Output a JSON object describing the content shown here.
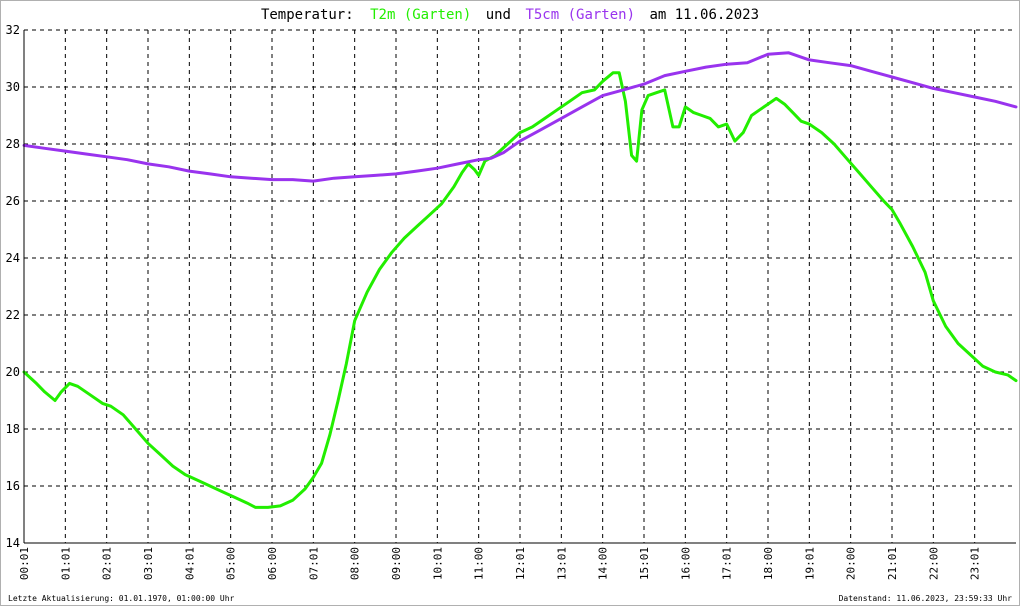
{
  "title": {
    "prefix": "Temperatur:",
    "series1_label": "T2m (Garten)",
    "connector": "und",
    "series2_label": "T5cm (Garten)",
    "suffix": "am 11.06.2023"
  },
  "footer": {
    "left": "Letzte Aktualisierung: 01.01.1970, 01:00:00 Uhr",
    "right": "Datenstand: 11.06.2023, 23:59:33 Uhr"
  },
  "colors": {
    "t2m": "#22ee00",
    "t5cm": "#9933ee",
    "grid": "#000000",
    "axis": "#000000"
  },
  "chart_data": {
    "type": "line",
    "title": "Temperatur: T2m (Garten) und T5cm (Garten) am 11.06.2023",
    "xlabel": "",
    "ylabel": "",
    "x_unit": "hours",
    "xlim": [
      0,
      24
    ],
    "ylim": [
      14,
      32
    ],
    "grid": true,
    "legend": "title",
    "y_ticks": [
      "14",
      "16",
      "18",
      "20",
      "22",
      "24",
      "26",
      "28",
      "30",
      "32"
    ],
    "x_tick_labels": [
      "00:01",
      "01:01",
      "02:01",
      "03:01",
      "04:01",
      "05:00",
      "06:00",
      "07:01",
      "08:00",
      "09:00",
      "10:01",
      "11:00",
      "12:01",
      "13:01",
      "14:00",
      "15:01",
      "16:00",
      "17:01",
      "18:00",
      "19:01",
      "20:00",
      "21:01",
      "22:00",
      "23:01"
    ],
    "series": [
      {
        "name": "T2m (Garten)",
        "x": [
          0.0,
          0.3,
          0.5,
          0.75,
          0.9,
          1.1,
          1.3,
          1.6,
          1.9,
          2.1,
          2.4,
          2.7,
          3.0,
          3.3,
          3.6,
          3.9,
          4.2,
          4.5,
          4.8,
          5.1,
          5.4,
          5.6,
          5.9,
          6.2,
          6.5,
          6.8,
          7.0,
          7.2,
          7.4,
          7.6,
          7.8,
          8.0,
          8.3,
          8.6,
          8.9,
          9.2,
          9.5,
          9.8,
          10.1,
          10.4,
          10.6,
          10.75,
          10.9,
          11.0,
          11.15,
          11.4,
          11.7,
          12.0,
          12.3,
          12.6,
          12.9,
          13.2,
          13.5,
          13.8,
          14.0,
          14.25,
          14.4,
          14.55,
          14.7,
          14.82,
          14.95,
          15.1,
          15.3,
          15.5,
          15.7,
          15.85,
          16.0,
          16.2,
          16.4,
          16.6,
          16.8,
          17.0,
          17.2,
          17.4,
          17.6,
          17.8,
          18.0,
          18.2,
          18.4,
          18.6,
          18.8,
          19.0,
          19.3,
          19.6,
          19.9,
          20.2,
          20.5,
          20.8,
          21.0,
          21.2,
          21.5,
          21.8,
          22.0,
          22.3,
          22.6,
          22.9,
          23.2,
          23.5,
          23.8,
          24.0
        ],
        "values": [
          20.0,
          19.6,
          19.3,
          19.0,
          19.3,
          19.6,
          19.5,
          19.2,
          18.9,
          18.8,
          18.5,
          18.0,
          17.5,
          17.1,
          16.7,
          16.4,
          16.2,
          16.0,
          15.8,
          15.6,
          15.4,
          15.25,
          15.25,
          15.3,
          15.5,
          15.9,
          16.3,
          16.8,
          17.8,
          19.0,
          20.3,
          21.8,
          22.8,
          23.6,
          24.2,
          24.7,
          25.1,
          25.5,
          25.9,
          26.5,
          27.0,
          27.3,
          27.1,
          26.9,
          27.4,
          27.6,
          28.0,
          28.4,
          28.6,
          28.9,
          29.2,
          29.5,
          29.8,
          29.9,
          30.2,
          30.5,
          30.5,
          29.5,
          27.6,
          27.4,
          29.2,
          29.7,
          29.8,
          29.9,
          28.6,
          28.6,
          29.3,
          29.1,
          29.0,
          28.9,
          28.6,
          28.7,
          28.1,
          28.4,
          29.0,
          29.2,
          29.4,
          29.6,
          29.4,
          29.1,
          28.8,
          28.7,
          28.4,
          28.0,
          27.5,
          27.0,
          26.5,
          26.0,
          25.7,
          25.2,
          24.4,
          23.5,
          22.5,
          21.6,
          21.0,
          20.6,
          20.2,
          20.0,
          19.9,
          19.7
        ]
      },
      {
        "name": "T5cm (Garten)",
        "x": [
          0.0,
          0.5,
          1.0,
          1.5,
          2.0,
          2.5,
          3.0,
          3.5,
          4.0,
          4.5,
          5.0,
          5.5,
          6.0,
          6.5,
          7.0,
          7.5,
          8.0,
          8.5,
          9.0,
          9.5,
          10.0,
          10.5,
          11.0,
          11.3,
          11.6,
          12.0,
          12.5,
          13.0,
          13.5,
          14.0,
          14.5,
          15.0,
          15.5,
          16.0,
          16.5,
          17.0,
          17.5,
          18.0,
          18.5,
          19.0,
          19.5,
          20.0,
          20.5,
          21.0,
          21.5,
          22.0,
          22.5,
          23.0,
          23.5,
          24.0
        ],
        "values": [
          27.95,
          27.85,
          27.75,
          27.65,
          27.55,
          27.45,
          27.3,
          27.2,
          27.05,
          26.95,
          26.85,
          26.8,
          26.75,
          26.75,
          26.7,
          26.8,
          26.85,
          26.9,
          26.95,
          27.05,
          27.15,
          27.3,
          27.45,
          27.5,
          27.7,
          28.1,
          28.5,
          28.9,
          29.3,
          29.7,
          29.9,
          30.1,
          30.4,
          30.55,
          30.7,
          30.8,
          30.85,
          31.15,
          31.2,
          30.95,
          30.85,
          30.75,
          30.55,
          30.35,
          30.15,
          29.95,
          29.8,
          29.65,
          29.5,
          29.3
        ]
      }
    ]
  }
}
